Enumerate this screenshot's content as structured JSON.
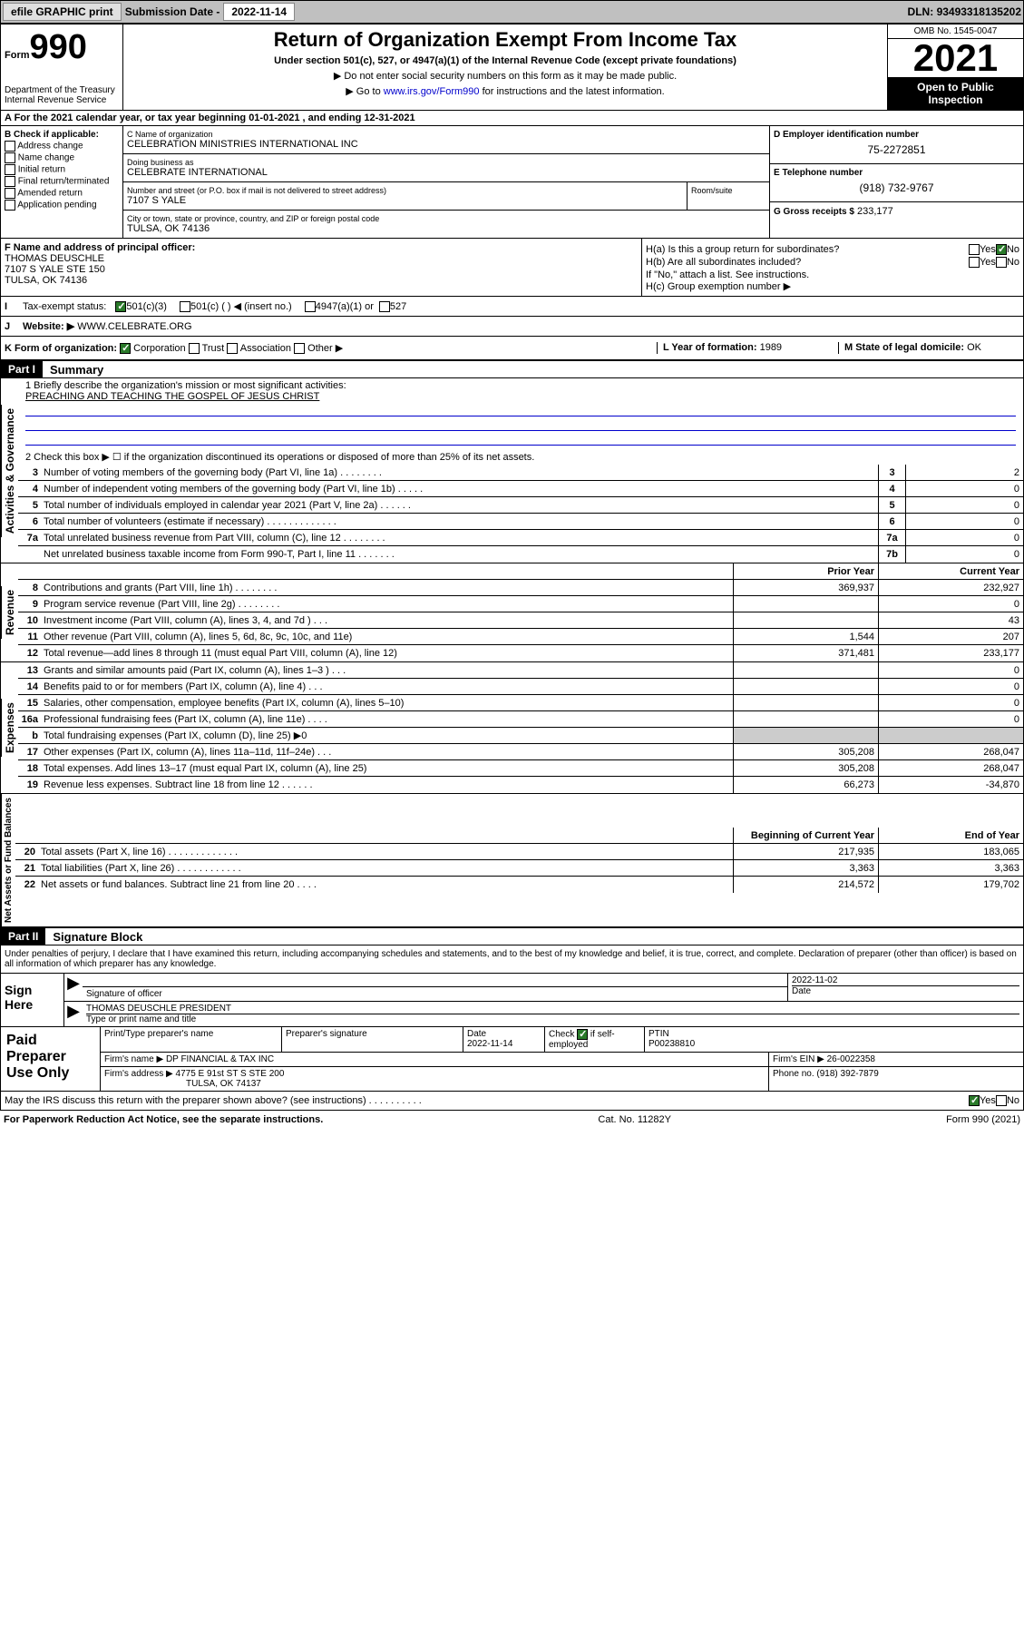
{
  "topbar": {
    "efile": "efile GRAPHIC print",
    "sub_label": "Submission Date -",
    "sub_date": "2022-11-14",
    "dln_label": "DLN:",
    "dln": "93493318135202"
  },
  "header": {
    "form": "990",
    "form_prefix": "Form",
    "title": "Return of Organization Exempt From Income Tax",
    "subtitle": "Under section 501(c), 527, or 4947(a)(1) of the Internal Revenue Code (except private foundations)",
    "note1": "▶ Do not enter social security numbers on this form as it may be made public.",
    "note2_pre": "▶ Go to ",
    "note2_link": "www.irs.gov/Form990",
    "note2_post": " for instructions and the latest information.",
    "dept": "Department of the Treasury Internal Revenue Service",
    "omb": "OMB No. 1545-0047",
    "year": "2021",
    "inspection": "Open to Public Inspection"
  },
  "section_a": "A For the 2021 calendar year, or tax year beginning 01-01-2021   , and ending 12-31-2021",
  "col_b": {
    "hdr": "B Check if applicable:",
    "items": [
      "Address change",
      "Name change",
      "Initial return",
      "Final return/terminated",
      "Amended return",
      "Application pending"
    ]
  },
  "col_c": {
    "name_lbl": "C Name of organization",
    "name": "CELEBRATION MINISTRIES INTERNATIONAL INC",
    "dba_lbl": "Doing business as",
    "dba": "CELEBRATE INTERNATIONAL",
    "addr_lbl": "Number and street (or P.O. box if mail is not delivered to street address)",
    "addr": "7107 S YALE",
    "room_lbl": "Room/suite",
    "city_lbl": "City or town, state or province, country, and ZIP or foreign postal code",
    "city": "TULSA, OK  74136"
  },
  "col_d": {
    "lbl": "D Employer identification number",
    "val": "75-2272851"
  },
  "col_e": {
    "lbl": "E Telephone number",
    "val": "(918) 732-9767"
  },
  "col_g": {
    "lbl": "G Gross receipts $",
    "val": "233,177"
  },
  "col_f": {
    "lbl": "F Name and address of principal officer:",
    "name": "THOMAS DEUSCHLE",
    "addr1": "7107 S YALE STE 150",
    "addr2": "TULSA, OK  74136"
  },
  "col_h": {
    "a_lbl": "H(a)  Is this a group return for subordinates?",
    "b_lbl": "H(b)  Are all subordinates included?",
    "b_note": "If \"No,\" attach a list. See instructions.",
    "c_lbl": "H(c)  Group exemption number ▶"
  },
  "row_i": {
    "lbl": "Tax-exempt status:",
    "o1": "501(c)(3)",
    "o2": "501(c) (  ) ◀ (insert no.)",
    "o3": "4947(a)(1) or",
    "o4": "527"
  },
  "row_j": {
    "lbl": "Website: ▶",
    "val": "WWW.CELEBRATE.ORG"
  },
  "row_k": {
    "lbl": "K Form of organization:",
    "opts": [
      "Corporation",
      "Trust",
      "Association",
      "Other ▶"
    ],
    "l_lbl": "L Year of formation:",
    "l_val": "1989",
    "m_lbl": "M State of legal domicile:",
    "m_val": "OK"
  },
  "part1": {
    "hdr": "Part I",
    "title": "Summary"
  },
  "summary": {
    "line1_lbl": "1  Briefly describe the organization's mission or most significant activities:",
    "line1_val": "PREACHING AND TEACHING THE GOSPEL OF JESUS CHRIST",
    "line2": "2   Check this box ▶ ☐  if the organization discontinued its operations or disposed of more than 25% of its net assets.",
    "lines_gov": [
      {
        "n": "3",
        "t": "Number of voting members of the governing body (Part VI, line 1a)   .   .   .   .   .   .   .   .",
        "b": "3",
        "v": "2"
      },
      {
        "n": "4",
        "t": "Number of independent voting members of the governing body (Part VI, line 1b)   .   .   .   .   .",
        "b": "4",
        "v": "0"
      },
      {
        "n": "5",
        "t": "Total number of individuals employed in calendar year 2021 (Part V, line 2a)   .   .   .   .   .   .",
        "b": "5",
        "v": "0"
      },
      {
        "n": "6",
        "t": "Total number of volunteers (estimate if necessary)   .   .   .   .   .   .   .   .   .   .   .   .   .",
        "b": "6",
        "v": "0"
      },
      {
        "n": "7a",
        "t": "Total unrelated business revenue from Part VIII, column (C), line 12   .   .   .   .   .   .   .   .",
        "b": "7a",
        "v": "0"
      },
      {
        "n": "",
        "t": "Net unrelated business taxable income from Form 990-T, Part I, line 11   .   .   .   .   .   .   .",
        "b": "7b",
        "v": "0"
      }
    ],
    "col_hdr_prior": "Prior Year",
    "col_hdr_curr": "Current Year",
    "lines_rev": [
      {
        "n": "8",
        "t": "Contributions and grants (Part VIII, line 1h)   .   .   .   .   .   .   .   .",
        "p": "369,937",
        "c": "232,927"
      },
      {
        "n": "9",
        "t": "Program service revenue (Part VIII, line 2g)   .   .   .   .   .   .   .   .",
        "p": "",
        "c": "0"
      },
      {
        "n": "10",
        "t": "Investment income (Part VIII, column (A), lines 3, 4, and 7d )   .   .   .",
        "p": "",
        "c": "43"
      },
      {
        "n": "11",
        "t": "Other revenue (Part VIII, column (A), lines 5, 6d, 8c, 9c, 10c, and 11e)",
        "p": "1,544",
        "c": "207"
      },
      {
        "n": "12",
        "t": "Total revenue—add lines 8 through 11 (must equal Part VIII, column (A), line 12)",
        "p": "371,481",
        "c": "233,177"
      }
    ],
    "lines_exp": [
      {
        "n": "13",
        "t": "Grants and similar amounts paid (Part IX, column (A), lines 1–3 )   .   .   .",
        "p": "",
        "c": "0"
      },
      {
        "n": "14",
        "t": "Benefits paid to or for members (Part IX, column (A), line 4)   .   .   .",
        "p": "",
        "c": "0"
      },
      {
        "n": "15",
        "t": "Salaries, other compensation, employee benefits (Part IX, column (A), lines 5–10)",
        "p": "",
        "c": "0"
      },
      {
        "n": "16a",
        "t": "Professional fundraising fees (Part IX, column (A), line 11e)   .   .   .   .",
        "p": "",
        "c": "0"
      },
      {
        "n": "b",
        "t": "Total fundraising expenses (Part IX, column (D), line 25) ▶0",
        "p": "shade",
        "c": "shade"
      },
      {
        "n": "17",
        "t": "Other expenses (Part IX, column (A), lines 11a–11d, 11f–24e)   .   .   .",
        "p": "305,208",
        "c": "268,047"
      },
      {
        "n": "18",
        "t": "Total expenses. Add lines 13–17 (must equal Part IX, column (A), line 25)",
        "p": "305,208",
        "c": "268,047"
      },
      {
        "n": "19",
        "t": "Revenue less expenses. Subtract line 18 from line 12   .   .   .   .   .   .",
        "p": "66,273",
        "c": "-34,870"
      }
    ],
    "col_hdr_beg": "Beginning of Current Year",
    "col_hdr_end": "End of Year",
    "lines_net": [
      {
        "n": "20",
        "t": "Total assets (Part X, line 16)   .   .   .   .   .   .   .   .   .   .   .   .   .",
        "p": "217,935",
        "c": "183,065"
      },
      {
        "n": "21",
        "t": "Total liabilities (Part X, line 26)   .   .   .   .   .   .   .   .   .   .   .   .",
        "p": "3,363",
        "c": "3,363"
      },
      {
        "n": "22",
        "t": "Net assets or fund balances. Subtract line 21 from line 20   .   .   .   .",
        "p": "214,572",
        "c": "179,702"
      }
    ]
  },
  "vlabels": {
    "gov": "Activities & Governance",
    "rev": "Revenue",
    "exp": "Expenses",
    "net": "Net Assets or Fund Balances"
  },
  "part2": {
    "hdr": "Part II",
    "title": "Signature Block"
  },
  "sig": {
    "text": "Under penalties of perjury, I declare that I have examined this return, including accompanying schedules and statements, and to the best of my knowledge and belief, it is true, correct, and complete. Declaration of preparer (other than officer) is based on all information of which preparer has any knowledge.",
    "here": "Sign Here",
    "officer_lbl": "Signature of officer",
    "date": "2022-11-02",
    "date_lbl": "Date",
    "name": "THOMAS DEUSCHLE PRESIDENT",
    "name_lbl": "Type or print name and title"
  },
  "prep": {
    "hdr": "Paid Preparer Use Only",
    "r1": {
      "c1": "Print/Type preparer's name",
      "c2": "Preparer's signature",
      "c3_lbl": "Date",
      "c3": "2022-11-14",
      "c4_lbl": "Check",
      "c4_sub": "if self-employed",
      "c5_lbl": "PTIN",
      "c5": "P00238810"
    },
    "r2": {
      "lbl": "Firm's name      ▶",
      "val": "DP FINANCIAL & TAX INC",
      "ein_lbl": "Firm's EIN ▶",
      "ein": "26-0022358"
    },
    "r3": {
      "lbl": "Firm's address ▶",
      "val1": "4775 E 91st ST S STE 200",
      "val2": "TULSA, OK  74137",
      "ph_lbl": "Phone no.",
      "ph": "(918) 392-7879"
    }
  },
  "discuss": "May the IRS discuss this return with the preparer shown above? (see instructions)   .   .   .   .   .   .   .   .   .   .",
  "footer": {
    "left": "For Paperwork Reduction Act Notice, see the separate instructions.",
    "mid": "Cat. No. 11282Y",
    "right": "Form 990 (2021)"
  }
}
